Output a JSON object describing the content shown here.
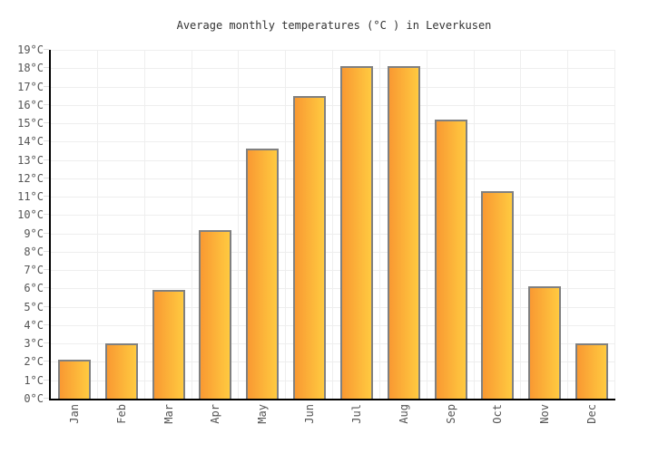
{
  "chart_data": {
    "type": "bar",
    "title": "Average monthly temperatures (°C ) in Leverkusen",
    "categories": [
      "Jan",
      "Feb",
      "Mar",
      "Apr",
      "May",
      "Jun",
      "Jul",
      "Aug",
      "Sep",
      "Oct",
      "Nov",
      "Dec"
    ],
    "values": [
      2.1,
      3,
      5.9,
      9.2,
      13.6,
      16.5,
      18.1,
      18.1,
      15.2,
      11.3,
      6.1,
      3
    ],
    "xlabel": "",
    "ylabel": "",
    "ylim": [
      0,
      19
    ],
    "ytick_step": 1,
    "ytick_suffix": "°C",
    "grid": true,
    "legend_position": "none",
    "colors": {
      "bar_gradient_start": "#f99932",
      "bar_gradient_end": "#ffca40",
      "bar_border": "#808080",
      "gridline": "#eeeeee",
      "axis": "#000000",
      "tick_label": "#555555",
      "title": "#333333",
      "background": "#ffffff"
    }
  }
}
